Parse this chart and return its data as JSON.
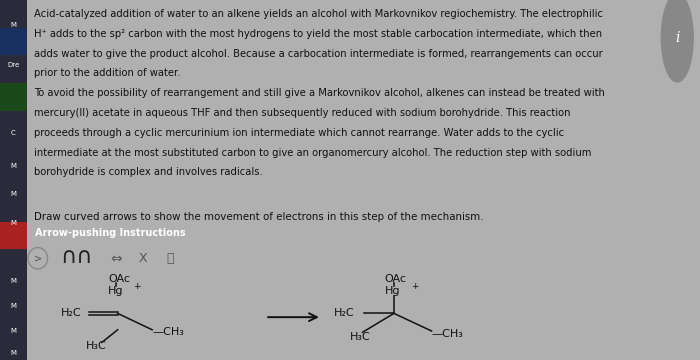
{
  "bg_color": "#b0b0b0",
  "panel_color": "#e8e8e8",
  "text_color": "#111111",
  "title_text1": "Acid-catalyzed addition of water to an alkene yields an alcohol with Markovnikov regiochemistry. The electrophilic",
  "title_text2": "H⁺ adds to the sp² carbon with the most hydrogens to yield the most stable carbocation intermediate, which then",
  "title_text3": "adds water to give the product alcohol. Because a carbocation intermediate is formed, rearrangements can occur",
  "title_text4": "prior to the addition of water.",
  "para2_line1": "To avoid the possibility of rearrangement and still give a Markovnikov alcohol, alkenes can instead be treated with",
  "para2_line2": "mercury(II) acetate in aqueous THF and then subsequently reduced with sodium borohydride. This reaction",
  "para2_line3": "proceeds through a cyclic mercurinium ion intermediate which cannot rearrange. Water adds to the cyclic",
  "para2_line4": "intermediate at the most substituted carbon to give an organomercury alcohol. The reduction step with sodium",
  "para2_line5": "borohydride is complex and involves radicals.",
  "draw_text": "Draw curved arrows to show the movement of electrons in this step of the mechanism.",
  "button_text": "Arrow-pushing Instructions",
  "button_color": "#2a5faa",
  "button_text_color": "#ffffff",
  "sidebar_dark": "#2a2a3a",
  "sidebar_medium": "#3a4a6a",
  "font_size_main": 7.2,
  "font_size_draw": 7.4,
  "font_size_btn": 7.0,
  "font_size_chem": 8.0,
  "font_size_icon": 14
}
